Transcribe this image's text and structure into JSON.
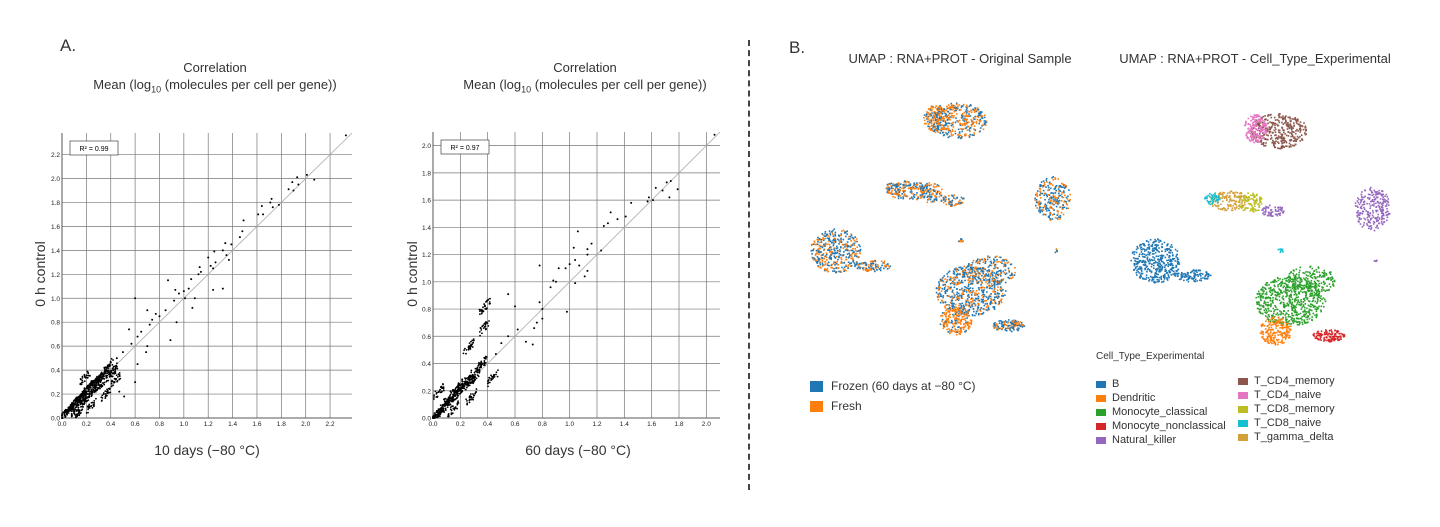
{
  "panel_a_label": "A.",
  "panel_b_label": "B.",
  "chart_data": [
    {
      "type": "scatter",
      "title": "Correlation",
      "subtitle_pre": "Mean (log",
      "subtitle_sub": "10",
      "subtitle_post": " (molecules per cell per gene))",
      "xlabel": "10 days (−80 °C)",
      "ylabel": "0 h control",
      "xlim": [
        0,
        2.38
      ],
      "ylim": [
        0,
        2.38
      ],
      "xticks": [
        "0.0",
        "0.2",
        "0.4",
        "0.6",
        "0.8",
        "1.0",
        "1.2",
        "1.4",
        "1.6",
        "1.8",
        "2.0",
        "2.2"
      ],
      "yticks": [
        "0.0",
        "0.2",
        "0.4",
        "0.6",
        "0.8",
        "1.0",
        "1.2",
        "1.4",
        "1.6",
        "1.8",
        "2.0",
        "2.2"
      ],
      "annotation": "R² = 0.99",
      "grid": true,
      "fit_line": true,
      "points": [
        [
          2.33,
          2.36
        ],
        [
          2.07,
          1.99
        ],
        [
          2.01,
          2.03
        ],
        [
          1.93,
          2.01
        ],
        [
          1.94,
          1.95
        ],
        [
          1.89,
          1.97
        ],
        [
          1.86,
          1.91
        ],
        [
          1.9,
          1.9
        ],
        [
          1.72,
          1.83
        ],
        [
          1.71,
          1.8
        ],
        [
          1.73,
          1.76
        ],
        [
          1.78,
          1.78
        ],
        [
          1.61,
          1.7
        ],
        [
          1.64,
          1.77
        ],
        [
          1.65,
          1.7
        ],
        [
          1.49,
          1.65
        ],
        [
          1.48,
          1.56
        ],
        [
          1.46,
          1.51
        ],
        [
          1.39,
          1.45
        ],
        [
          1.34,
          1.46
        ],
        [
          1.32,
          1.4
        ],
        [
          1.35,
          1.36
        ],
        [
          1.37,
          1.32
        ],
        [
          1.25,
          1.39
        ],
        [
          1.26,
          1.3
        ],
        [
          1.22,
          1.27
        ],
        [
          1.24,
          1.25
        ],
        [
          1.32,
          1.08
        ],
        [
          1.24,
          1.07
        ],
        [
          1.2,
          1.34
        ],
        [
          1.13,
          1.26
        ],
        [
          1.14,
          1.22
        ],
        [
          1.12,
          1.2
        ],
        [
          1.06,
          1.16
        ],
        [
          1.04,
          1.08
        ],
        [
          1.0,
          1.06
        ],
        [
          1.01,
          1.0
        ],
        [
          1.09,
          1.0
        ],
        [
          1.07,
          0.92
        ],
        [
          0.96,
          1.04
        ],
        [
          0.93,
          1.07
        ],
        [
          0.87,
          1.15
        ],
        [
          0.92,
          0.98
        ],
        [
          0.85,
          0.9
        ],
        [
          0.8,
          0.85
        ],
        [
          0.77,
          0.87
        ],
        [
          0.94,
          0.8
        ],
        [
          0.89,
          0.65
        ],
        [
          0.74,
          0.82
        ],
        [
          0.72,
          0.78
        ],
        [
          0.7,
          0.9
        ],
        [
          0.6,
          1.0
        ],
        [
          0.65,
          0.72
        ],
        [
          0.62,
          0.68
        ],
        [
          0.7,
          0.6
        ],
        [
          0.69,
          0.55
        ],
        [
          0.6,
          0.3
        ],
        [
          0.62,
          0.45
        ],
        [
          0.57,
          0.62
        ],
        [
          0.55,
          0.74
        ],
        [
          0.5,
          0.55
        ],
        [
          0.51,
          0.18
        ],
        [
          0.47,
          0.22
        ],
        [
          0.45,
          0.5
        ],
        [
          0.44,
          0.32
        ],
        [
          0.42,
          0.4
        ],
        [
          0.38,
          0.44
        ],
        [
          0.4,
          0.36
        ],
        [
          0.35,
          0.38
        ],
        [
          0.33,
          0.34
        ],
        [
          0.3,
          0.32
        ],
        [
          0.31,
          0.27
        ],
        [
          0.28,
          0.3
        ],
        [
          0.25,
          0.28
        ],
        [
          0.26,
          0.23
        ],
        [
          0.22,
          0.26
        ],
        [
          0.2,
          0.22
        ],
        [
          0.21,
          0.17
        ],
        [
          0.18,
          0.2
        ],
        [
          0.15,
          0.18
        ],
        [
          0.16,
          0.13
        ],
        [
          0.13,
          0.15
        ],
        [
          0.1,
          0.12
        ],
        [
          0.11,
          0.07
        ],
        [
          0.08,
          0.1
        ],
        [
          0.06,
          0.07
        ],
        [
          0.04,
          0.05
        ],
        [
          0.02,
          0.03
        ],
        [
          0.19,
          0.34
        ],
        [
          0.24,
          0.1
        ],
        [
          0.36,
          0.2
        ],
        [
          0.14,
          0.05
        ]
      ]
    },
    {
      "type": "scatter",
      "title": "Correlation",
      "subtitle_pre": "Mean (log",
      "subtitle_sub": "10",
      "subtitle_post": " (molecules per cell per gene))",
      "xlabel": "60 days (−80 °C)",
      "ylabel": "0 h control",
      "xlim": [
        0,
        2.1
      ],
      "ylim": [
        0,
        2.1
      ],
      "xticks": [
        "0.0",
        "0.2",
        "0.4",
        "0.6",
        "0.8",
        "1.0",
        "1.2",
        "1.4",
        "1.6",
        "1.8",
        "2.0"
      ],
      "yticks": [
        "0.0",
        "0.2",
        "0.4",
        "0.6",
        "0.8",
        "1.0",
        "1.2",
        "1.4",
        "1.6",
        "1.8",
        "2.0"
      ],
      "annotation": "R² = 0.97",
      "grid": true,
      "fit_line": true,
      "points": [
        [
          2.06,
          2.08
        ],
        [
          1.79,
          1.68
        ],
        [
          1.74,
          1.74
        ],
        [
          1.71,
          1.73
        ],
        [
          1.73,
          1.62
        ],
        [
          1.68,
          1.67
        ],
        [
          1.63,
          1.69
        ],
        [
          1.61,
          1.6
        ],
        [
          1.58,
          1.62
        ],
        [
          1.57,
          1.59
        ],
        [
          1.45,
          1.58
        ],
        [
          1.41,
          1.48
        ],
        [
          1.35,
          1.46
        ],
        [
          1.3,
          1.51
        ],
        [
          1.28,
          1.43
        ],
        [
          1.25,
          1.41
        ],
        [
          1.23,
          1.23
        ],
        [
          1.16,
          1.28
        ],
        [
          1.13,
          1.24
        ],
        [
          1.13,
          1.2
        ],
        [
          1.06,
          1.37
        ],
        [
          1.03,
          1.25
        ],
        [
          1.04,
          1.16
        ],
        [
          1.0,
          1.13
        ],
        [
          1.07,
          1.12
        ],
        [
          1.13,
          1.08
        ],
        [
          1.11,
          1.04
        ],
        [
          1.04,
          0.99
        ],
        [
          0.98,
          0.78
        ],
        [
          0.97,
          1.1
        ],
        [
          0.92,
          1.1
        ],
        [
          0.9,
          1.0
        ],
        [
          0.86,
          0.96
        ],
        [
          0.88,
          1.01
        ],
        [
          0.78,
          1.12
        ],
        [
          0.78,
          0.85
        ],
        [
          0.8,
          0.8
        ],
        [
          0.8,
          0.73
        ],
        [
          0.76,
          0.7
        ],
        [
          0.74,
          0.66
        ],
        [
          0.73,
          0.54
        ],
        [
          0.68,
          0.56
        ],
        [
          0.62,
          0.65
        ],
        [
          0.6,
          0.82
        ],
        [
          0.55,
          0.91
        ],
        [
          0.55,
          0.6
        ],
        [
          0.5,
          0.55
        ],
        [
          0.46,
          0.47
        ],
        [
          0.44,
          0.3
        ],
        [
          0.38,
          0.82
        ],
        [
          0.38,
          0.67
        ],
        [
          0.36,
          0.4
        ],
        [
          0.32,
          0.36
        ],
        [
          0.26,
          0.52
        ],
        [
          0.3,
          0.3
        ],
        [
          0.27,
          0.26
        ],
        [
          0.24,
          0.27
        ],
        [
          0.22,
          0.22
        ],
        [
          0.2,
          0.24
        ],
        [
          0.18,
          0.18
        ],
        [
          0.16,
          0.2
        ],
        [
          0.14,
          0.14
        ],
        [
          0.12,
          0.15
        ],
        [
          0.1,
          0.1
        ],
        [
          0.08,
          0.09
        ],
        [
          0.06,
          0.05
        ],
        [
          0.04,
          0.04
        ],
        [
          0.02,
          0.02
        ],
        [
          0.04,
          0.19
        ],
        [
          0.15,
          0.07
        ],
        [
          0.28,
          0.15
        ]
      ]
    }
  ],
  "umap": {
    "titles": [
      "UMAP : RNA+PROT - Original Sample",
      "UMAP : RNA+PROT - Cell_Type_Experimental"
    ],
    "legend1": [
      {
        "label": "Frozen (60 days at −80 °C)",
        "color": "#1f77b4"
      },
      {
        "label": "Fresh",
        "color": "#ff7f0e"
      }
    ],
    "legend2_title": "Cell_Type_Experimental",
    "legend2": [
      {
        "label": "B",
        "color": "#1f77b4"
      },
      {
        "label": "Dendritic",
        "color": "#ff7f0e"
      },
      {
        "label": "Monocyte_classical",
        "color": "#2ca02c"
      },
      {
        "label": "Monocyte_nonclassical",
        "color": "#d62728"
      },
      {
        "label": "Natural_killer",
        "color": "#9467bd"
      },
      {
        "label": "T_CD4_memory",
        "color": "#8c564b"
      },
      {
        "label": "T_CD4_naive",
        "color": "#e377c2"
      },
      {
        "label": "T_CD8_memory",
        "color": "#bcbd22"
      },
      {
        "label": "T_CD8_naive",
        "color": "#17becf"
      },
      {
        "label": "T_gamma_delta",
        "color": "#d4a03a"
      }
    ]
  }
}
